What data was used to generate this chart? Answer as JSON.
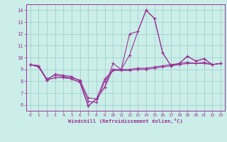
{
  "xlabel": "Windchill (Refroidissement éolien,°C)",
  "ylabel": "",
  "bg_color": "#cceee8",
  "line_color": "#993399",
  "grid_color": "#99cccc",
  "axis_color": "#993399",
  "xlim": [
    -0.5,
    23.5
  ],
  "ylim": [
    5.5,
    14.5
  ],
  "xticks": [
    0,
    1,
    2,
    3,
    4,
    5,
    6,
    7,
    8,
    9,
    10,
    11,
    12,
    13,
    14,
    15,
    16,
    17,
    18,
    19,
    20,
    21,
    22,
    23
  ],
  "yticks": [
    6,
    7,
    8,
    9,
    10,
    11,
    12,
    13,
    14
  ],
  "series1_x": [
    0,
    1,
    2,
    3,
    4,
    5,
    6,
    7,
    8,
    9,
    10,
    11,
    12,
    13,
    14,
    15,
    16,
    17,
    18,
    19,
    20,
    21,
    22,
    23
  ],
  "series1_y": [
    9.4,
    9.3,
    8.1,
    8.3,
    8.3,
    8.2,
    7.9,
    5.9,
    6.5,
    7.5,
    9.0,
    9.0,
    12.0,
    12.2,
    14.0,
    13.3,
    10.4,
    9.3,
    9.5,
    10.1,
    9.7,
    9.9,
    9.4,
    9.5
  ],
  "series2_x": [
    0,
    1,
    2,
    3,
    4,
    5,
    6,
    7,
    8,
    9,
    10,
    11,
    12,
    13,
    14,
    15,
    16,
    17,
    18,
    19,
    20,
    21,
    22,
    23
  ],
  "series2_y": [
    9.4,
    9.2,
    8.1,
    8.6,
    8.5,
    8.4,
    8.0,
    6.3,
    6.2,
    8.0,
    9.0,
    9.0,
    9.0,
    9.1,
    9.1,
    9.2,
    9.3,
    9.4,
    9.5,
    9.6,
    9.5,
    9.6,
    9.4,
    9.5
  ],
  "series3_x": [
    0,
    1,
    2,
    3,
    4,
    5,
    6,
    7,
    8,
    9,
    10,
    11,
    12,
    13,
    14,
    15,
    16,
    17,
    18,
    19,
    20,
    21,
    22,
    23
  ],
  "series3_y": [
    9.4,
    9.3,
    8.2,
    8.5,
    8.4,
    8.3,
    8.1,
    6.6,
    6.5,
    8.2,
    8.9,
    8.9,
    8.9,
    9.0,
    9.0,
    9.1,
    9.2,
    9.3,
    9.4,
    9.5,
    9.5,
    9.5,
    9.4,
    9.5
  ],
  "series4_x": [
    0,
    1,
    2,
    3,
    4,
    5,
    6,
    7,
    8,
    9,
    10,
    11,
    12,
    13,
    14,
    15,
    16,
    17,
    18,
    19,
    20,
    21,
    22,
    23
  ],
  "series4_y": [
    9.4,
    9.3,
    8.1,
    8.3,
    8.3,
    8.2,
    7.9,
    5.9,
    6.5,
    7.5,
    9.5,
    9.0,
    10.2,
    12.2,
    14.0,
    13.3,
    10.4,
    9.3,
    9.5,
    10.1,
    9.7,
    9.9,
    9.4,
    9.5
  ]
}
